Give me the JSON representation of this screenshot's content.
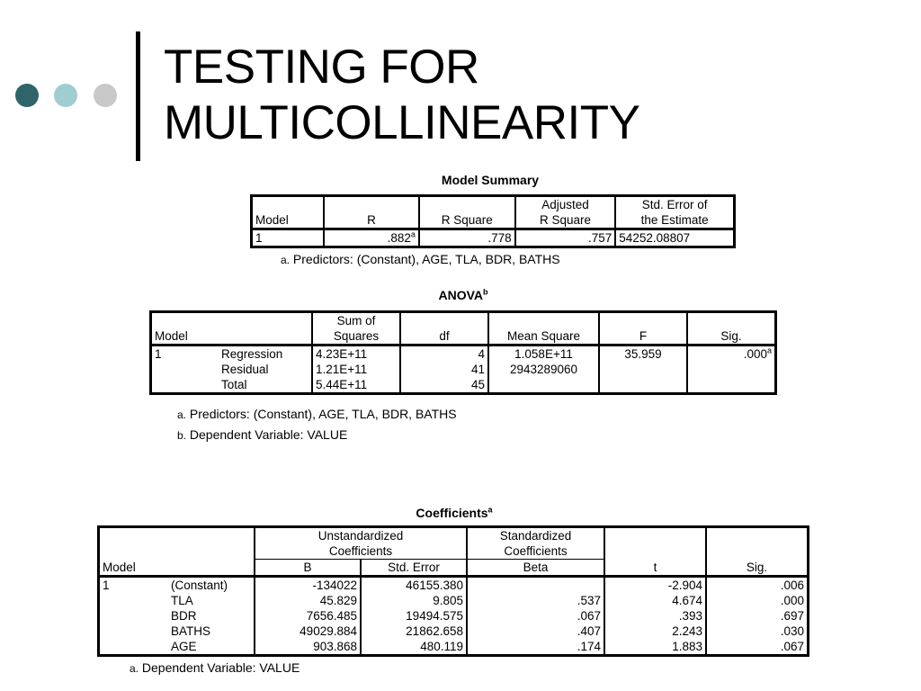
{
  "slide": {
    "title_line1": "TESTING FOR",
    "title_line2": "MULTICOLLINEARITY"
  },
  "model_summary": {
    "caption": "Model Summary",
    "headers": {
      "model": "Model",
      "r": "R",
      "r_square": "R Square",
      "adj_line1": "Adjusted",
      "adj_line2": "R Square",
      "se_line1": "Std. Error of",
      "se_line2": "the Estimate"
    },
    "row": {
      "model": "1",
      "r": ".882",
      "r_sup": "a",
      "r_square": ".778",
      "adj": ".757",
      "se": "54252.08807"
    },
    "note_marker": "a.",
    "note_text": "Predictors: (Constant), AGE, TLA, BDR, BATHS"
  },
  "anova": {
    "caption": "ANOVA",
    "caption_sup": "b",
    "headers": {
      "model": "Model",
      "ss_line1": "Sum of",
      "ss_line2": "Squares",
      "df": "df",
      "ms": "Mean Square",
      "f": "F",
      "sig": "Sig."
    },
    "model_num": "1",
    "rows": [
      {
        "label": "Regression",
        "ss": "4.23E+11",
        "df": "4",
        "ms": "1.058E+11",
        "f": "35.959",
        "sig": ".000",
        "sig_sup": "a"
      },
      {
        "label": "Residual",
        "ss": "1.21E+11",
        "df": "41",
        "ms": "2943289060",
        "f": "",
        "sig": "",
        "sig_sup": ""
      },
      {
        "label": "Total",
        "ss": "5.44E+11",
        "df": "45",
        "ms": "",
        "f": "",
        "sig": "",
        "sig_sup": ""
      }
    ],
    "note_a_marker": "a.",
    "note_a_text": "Predictors: (Constant), AGE, TLA, BDR, BATHS",
    "note_b_marker": "b.",
    "note_b_text": "Dependent Variable: VALUE"
  },
  "coefficients": {
    "caption": "Coefficients",
    "caption_sup": "a",
    "headers": {
      "unstd_line1": "Unstandardized",
      "unstd_line2": "Coefficients",
      "std_line1": "Standardized",
      "std_line2": "Coefficients",
      "model": "Model",
      "b": "B",
      "se": "Std. Error",
      "beta": "Beta",
      "t": "t",
      "sig": "Sig."
    },
    "model_num": "1",
    "rows": [
      {
        "label": "(Constant)",
        "b": "-134022",
        "se": "46155.380",
        "beta": "",
        "t": "-2.904",
        "sig": ".006"
      },
      {
        "label": "TLA",
        "b": "45.829",
        "se": "9.805",
        "beta": ".537",
        "t": "4.674",
        "sig": ".000"
      },
      {
        "label": "BDR",
        "b": "7656.485",
        "se": "19494.575",
        "beta": ".067",
        "t": ".393",
        "sig": ".697"
      },
      {
        "label": "BATHS",
        "b": "49029.884",
        "se": "21862.658",
        "beta": ".407",
        "t": "2.243",
        "sig": ".030"
      },
      {
        "label": "AGE",
        "b": "903.868",
        "se": "480.119",
        "beta": ".174",
        "t": "1.883",
        "sig": ".067"
      }
    ],
    "note_marker": "a.",
    "note_text": "Dependent Variable: VALUE"
  }
}
